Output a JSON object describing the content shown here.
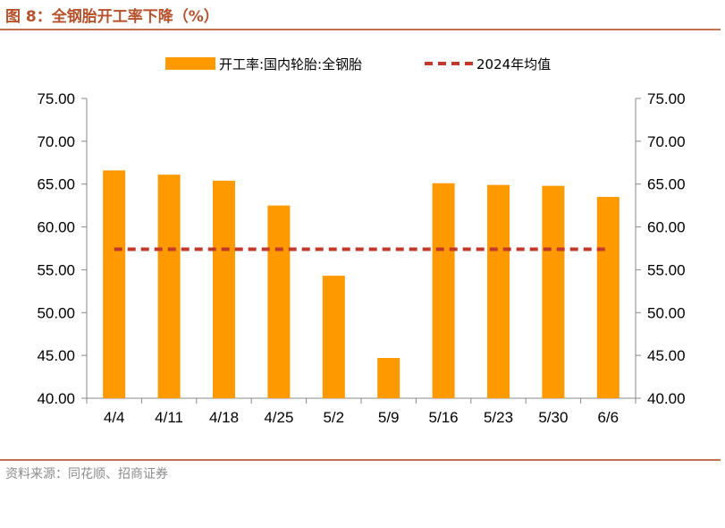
{
  "header": {
    "title": "图 8：全钢胎开工率下降（%）"
  },
  "footer": {
    "source": "资料来源：同花顺、招商证券"
  },
  "colors": {
    "bar": "#ff9900",
    "avg_line": "#c0392b",
    "rule": "#c0714f",
    "title": "#b5522b"
  },
  "chart_data": {
    "type": "bar",
    "categories": [
      "4/4",
      "4/11",
      "4/18",
      "4/25",
      "5/2",
      "5/9",
      "5/16",
      "5/23",
      "5/30",
      "6/6"
    ],
    "series": [
      {
        "name": "开工率:国内轮胎:全钢胎",
        "type": "bar",
        "values": [
          66.6,
          66.1,
          65.4,
          62.5,
          54.3,
          44.7,
          65.1,
          64.9,
          64.8,
          63.5
        ]
      },
      {
        "name": "2024年均值",
        "type": "line-dashed",
        "values": [
          57.4,
          57.4,
          57.4,
          57.4,
          57.4,
          57.4,
          57.4,
          57.4,
          57.4,
          57.4
        ]
      }
    ],
    "ylim": [
      40,
      75
    ],
    "yticks": [
      "40.00",
      "45.00",
      "50.00",
      "55.00",
      "60.00",
      "65.00",
      "70.00",
      "75.00"
    ],
    "ytick_values": [
      40,
      45,
      50,
      55,
      60,
      65,
      70,
      75
    ],
    "legend_position": "top",
    "secondary_y_axis": true,
    "grid": false
  }
}
